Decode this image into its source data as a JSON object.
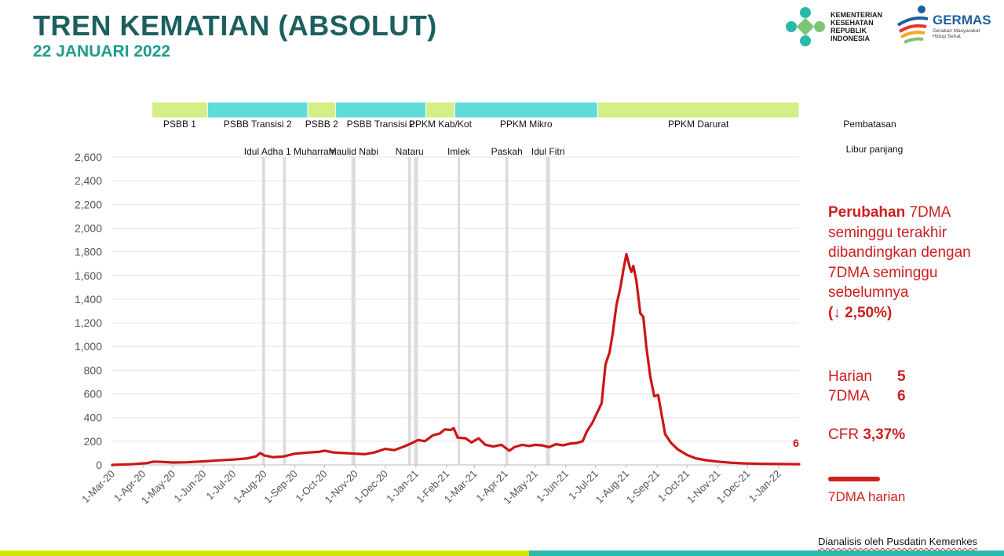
{
  "header": {
    "title": "TREN KEMATIAN (ABSOLUT)",
    "subtitle": "22 JANUARI 2022"
  },
  "logos": {
    "kemenkes_text": "KEMENTERIAN KESEHATAN REPUBLIK INDONESIA",
    "germas_title": "GERMAS",
    "germas_sub": "Gerakan Masyarakat Hidup Sehat"
  },
  "right_panel": {
    "line1_bold": "Perubahan",
    "line1_rest": " 7DMA seminggu terakhir dibandingkan dengan 7DMA seminggu sebelumnya",
    "change": "(↓ 2,50%)",
    "harian_label": "Harian",
    "harian_value": "5",
    "dma_label": "7DMA",
    "dma_value": "6",
    "cfr_label": "CFR ",
    "cfr_value": "3,37%",
    "legend_label": "7DMA harian"
  },
  "source": "Dianalisis oleh Pusdatin Kemenkes",
  "colors": {
    "line": "#cc1616",
    "band_green": "#d4ef86",
    "band_teal": "#5fdcd8",
    "holiday": "#dcdcdc",
    "grid": "#e3e3e3"
  },
  "chart_data": {
    "type": "line",
    "ylim": [
      0,
      2600
    ],
    "yticks": [
      "0",
      "200",
      "400",
      "600",
      "800",
      "1,000",
      "1,200",
      "1,400",
      "1,600",
      "1,800",
      "2,000",
      "2,200",
      "2,400",
      "2,600"
    ],
    "xticks": [
      "1-Mar-20",
      "1-Apr-20",
      "1-May-20",
      "1-Jun-20",
      "1-Jul-20",
      "1-Aug-20",
      "1-Sep-20",
      "1-Oct-20",
      "1-Nov-20",
      "1-Dec-20",
      "1-Jan-21",
      "1-Feb-21",
      "1-Mar-21",
      "1-Apr-21",
      "1-May-21",
      "1-Jun-21",
      "1-Jul-21",
      "1-Aug-21",
      "1-Sep-21",
      "1-Oct-21",
      "1-Nov-21",
      "1-Dec-21",
      "1-Jan-22"
    ],
    "end_label": "6",
    "restriction_label": "Pembatasan",
    "holiday_label": "Libur panjang",
    "restrictions": [
      {
        "label": "PSBB 1",
        "start": "2020-04-10",
        "end": "2020-06-05",
        "color": "green"
      },
      {
        "label": "PSBB Transisi 2",
        "start": "2020-06-05",
        "end": "2020-09-14",
        "color": "teal"
      },
      {
        "label": "PSBB 2",
        "start": "2020-09-14",
        "end": "2020-10-12",
        "color": "green"
      },
      {
        "label": "PSBB Transisi 2",
        "start": "2020-10-12",
        "end": "2021-01-11",
        "color": "teal"
      },
      {
        "label": "PPKM Kab/Kot",
        "start": "2021-01-11",
        "end": "2021-02-09",
        "color": "green"
      },
      {
        "label": "PPKM Mikro",
        "start": "2021-02-09",
        "end": "2021-07-03",
        "color": "teal"
      },
      {
        "label": "PPKM Darurat",
        "start": "2021-07-03",
        "end": "2022-01-22",
        "color": "green"
      }
    ],
    "holidays": [
      {
        "label": "Idul Adha",
        "start": "2020-07-30",
        "end": "2020-08-02"
      },
      {
        "label": "1 Muharram",
        "start": "2020-08-20",
        "end": "2020-08-23"
      },
      {
        "label": "Maulid Nabi",
        "start": "2020-10-28",
        "end": "2020-11-01"
      },
      {
        "label": "Nataru",
        "start": "2020-12-24",
        "end": "2020-12-27"
      },
      {
        "label": "",
        "start": "2020-12-30",
        "end": "2021-01-03"
      },
      {
        "label": "Imlek",
        "start": "2021-02-12",
        "end": "2021-02-14"
      },
      {
        "label": "Paskah",
        "start": "2021-04-01",
        "end": "2021-04-04"
      },
      {
        "label": "Idul Fitri",
        "start": "2021-05-12",
        "end": "2021-05-16"
      }
    ],
    "series": [
      {
        "points": [
          [
            "2020-03-01",
            0
          ],
          [
            "2020-03-20",
            5
          ],
          [
            "2020-04-05",
            15
          ],
          [
            "2020-04-12",
            28
          ],
          [
            "2020-04-20",
            25
          ],
          [
            "2020-05-01",
            20
          ],
          [
            "2020-05-15",
            22
          ],
          [
            "2020-06-01",
            30
          ],
          [
            "2020-06-15",
            38
          ],
          [
            "2020-07-01",
            45
          ],
          [
            "2020-07-15",
            55
          ],
          [
            "2020-07-24",
            72
          ],
          [
            "2020-07-28",
            100
          ],
          [
            "2020-08-01",
            80
          ],
          [
            "2020-08-10",
            65
          ],
          [
            "2020-08-20",
            70
          ],
          [
            "2020-09-01",
            95
          ],
          [
            "2020-09-15",
            105
          ],
          [
            "2020-09-25",
            110
          ],
          [
            "2020-10-01",
            120
          ],
          [
            "2020-10-10",
            105
          ],
          [
            "2020-10-20",
            100
          ],
          [
            "2020-11-01",
            95
          ],
          [
            "2020-11-10",
            90
          ],
          [
            "2020-11-20",
            105
          ],
          [
            "2020-12-01",
            135
          ],
          [
            "2020-12-10",
            125
          ],
          [
            "2020-12-20",
            155
          ],
          [
            "2020-12-28",
            185
          ],
          [
            "2021-01-03",
            210
          ],
          [
            "2021-01-10",
            200
          ],
          [
            "2021-01-18",
            250
          ],
          [
            "2021-01-25",
            265
          ],
          [
            "2021-01-30",
            300
          ],
          [
            "2021-02-05",
            295
          ],
          [
            "2021-02-08",
            310
          ],
          [
            "2021-02-12",
            230
          ],
          [
            "2021-02-20",
            225
          ],
          [
            "2021-02-26",
            190
          ],
          [
            "2021-03-05",
            225
          ],
          [
            "2021-03-12",
            170
          ],
          [
            "2021-03-20",
            155
          ],
          [
            "2021-03-28",
            170
          ],
          [
            "2021-04-05",
            120
          ],
          [
            "2021-04-10",
            150
          ],
          [
            "2021-04-18",
            170
          ],
          [
            "2021-04-25",
            160
          ],
          [
            "2021-05-01",
            170
          ],
          [
            "2021-05-08",
            165
          ],
          [
            "2021-05-15",
            150
          ],
          [
            "2021-05-22",
            175
          ],
          [
            "2021-05-29",
            165
          ],
          [
            "2021-06-05",
            180
          ],
          [
            "2021-06-12",
            185
          ],
          [
            "2021-06-18",
            200
          ],
          [
            "2021-06-22",
            280
          ],
          [
            "2021-06-28",
            360
          ],
          [
            "2021-07-03",
            450
          ],
          [
            "2021-07-07",
            520
          ],
          [
            "2021-07-11",
            850
          ],
          [
            "2021-07-15",
            950
          ],
          [
            "2021-07-18",
            1100
          ],
          [
            "2021-07-22",
            1350
          ],
          [
            "2021-07-26",
            1500
          ],
          [
            "2021-07-29",
            1650
          ],
          [
            "2021-08-01",
            1780
          ],
          [
            "2021-08-04",
            1680
          ],
          [
            "2021-08-06",
            1630
          ],
          [
            "2021-08-08",
            1680
          ],
          [
            "2021-08-11",
            1560
          ],
          [
            "2021-08-15",
            1280
          ],
          [
            "2021-08-18",
            1250
          ],
          [
            "2021-08-21",
            1000
          ],
          [
            "2021-08-25",
            750
          ],
          [
            "2021-08-29",
            580
          ],
          [
            "2021-09-02",
            590
          ],
          [
            "2021-09-05",
            450
          ],
          [
            "2021-09-09",
            260
          ],
          [
            "2021-09-15",
            185
          ],
          [
            "2021-09-22",
            130
          ],
          [
            "2021-10-01",
            85
          ],
          [
            "2021-10-10",
            55
          ],
          [
            "2021-10-20",
            40
          ],
          [
            "2021-11-01",
            28
          ],
          [
            "2021-11-15",
            18
          ],
          [
            "2021-12-01",
            12
          ],
          [
            "2021-12-15",
            9
          ],
          [
            "2022-01-01",
            7
          ],
          [
            "2022-01-22",
            6
          ]
        ]
      }
    ]
  }
}
